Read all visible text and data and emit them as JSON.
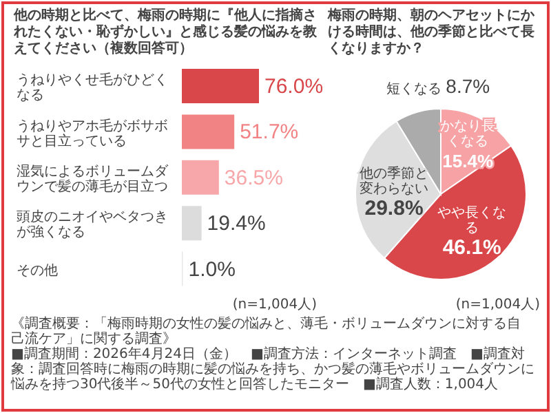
{
  "chart_data": [
    {
      "type": "bar",
      "orientation": "horizontal",
      "title": "他の時期と比べて、梅雨の時期に『他人に指摘されたくない・恥ずかしい』と感じる髪の悩みを教えてください（複数回答可）",
      "categories": [
        "うねりやくせ毛がひどくなる",
        "うねりやアホ毛がボサボサと目立っている",
        "湿気によるボリュームダウンで髪の薄毛が目立つ",
        "頭皮のニオイやベタつきが強くなる",
        "その他"
      ],
      "values": [
        76.0,
        51.7,
        36.5,
        19.4,
        1.0
      ],
      "value_labels": [
        "76.0%",
        "51.7%",
        "36.5%",
        "19.4%",
        "1.0%"
      ],
      "colors": [
        "#d9474a",
        "#f28385",
        "#f7a7a9",
        "#dcdcdc",
        "#e6e6e6"
      ],
      "annotations": [
        "(n=1,004人)"
      ]
    },
    {
      "type": "pie",
      "title": "梅雨の時期、朝のヘアセットにかける時間は、他の季節と比べて長くなりますか？",
      "categories": [
        "かなり長くなる",
        "やや長くなる",
        "他の季節と変わらない",
        "短くなる"
      ],
      "values": [
        15.4,
        46.1,
        29.8,
        8.7
      ],
      "value_labels": [
        "15.4%",
        "46.1%",
        "29.8%",
        "8.7%"
      ],
      "colors": [
        "#f7a3a5",
        "#d9474a",
        "#dedede",
        "#ababab"
      ],
      "annotations": [
        "(n=1,004人)"
      ]
    },
    {
      "type": "other",
      "annotations": [
        "《調査概要：「梅雨時期の女性の髪の悩みと、薄毛・ボリュームダウンに対する自己流ケア」に関する調査》",
        "■調査期間：2026年4月24日（金）",
        "■調査方法：インターネット調査",
        "■調査対象：調査回答時に梅雨の時期に髪の悩みを持ち、かつ髪の薄毛やボリュームダウンに悩みを持つ30代後半～50代の女性と回答したモニター",
        "■調査人数：1,004人"
      ]
    }
  ]
}
